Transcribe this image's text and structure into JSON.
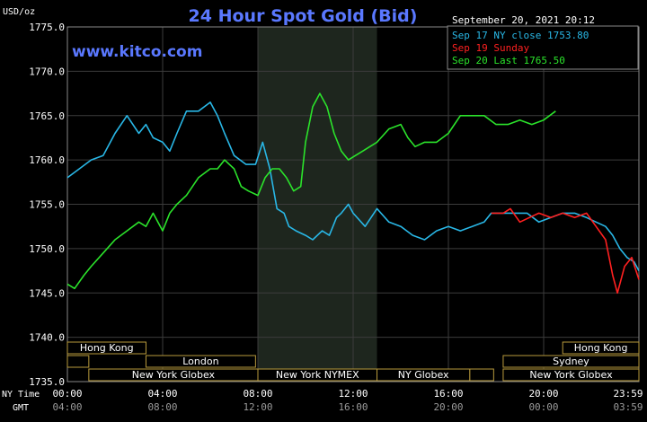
{
  "chart_data": {
    "type": "line",
    "title": "24 Hour Spot Gold (Bid)",
    "date_stamp": "September 20, 2021 20:12",
    "watermark": "www.kitco.com",
    "ylabel": "USD/oz",
    "ylim": [
      1735,
      1775
    ],
    "y_ticks": [
      "1775.0",
      "1770.0",
      "1765.0",
      "1760.0",
      "1755.0",
      "1750.0",
      "1745.0",
      "1740.0",
      "1735.0"
    ],
    "x_row1_label": "NY Time",
    "x_row2_label": "GMT",
    "x_ticks_ny": [
      "00:00",
      "04:00",
      "08:00",
      "12:00",
      "16:00",
      "20:00",
      "23:59"
    ],
    "x_ticks_gmt": [
      "04:00",
      "08:00",
      "12:00",
      "16:00",
      "20:00",
      "00:00",
      "03:59"
    ],
    "x_hours": [
      0,
      4,
      8,
      12,
      16,
      20,
      24
    ],
    "nymex_shade_hours": [
      8,
      13
    ],
    "grid": true,
    "legend_position": "top-right",
    "colors": {
      "background": "#000000",
      "grid": "#3c3c3c",
      "text": "#ffffff",
      "title": "#5a78ff",
      "shade": "#1e261e",
      "session": "#b89a3c"
    },
    "series": [
      {
        "name": "Sep 17 NY close 1753.80",
        "color": "#29b7e6",
        "x": [
          0,
          0.5,
          1,
          1.5,
          2,
          2.5,
          3,
          3.3,
          3.6,
          4,
          4.3,
          4.6,
          5,
          5.5,
          6,
          6.3,
          6.6,
          7,
          7.5,
          7.9,
          8.2,
          8.5,
          8.8,
          9.1,
          9.3,
          9.6,
          10,
          10.3,
          10.7,
          11,
          11.3,
          11.5,
          11.8,
          12,
          12.5,
          13,
          13.5,
          14,
          14.5,
          15,
          15.5,
          16,
          16.5,
          17,
          17.5,
          17.8,
          18.3,
          18.8,
          19.3,
          19.8,
          20.3,
          20.8,
          21.3,
          21.8,
          22.2,
          22.6,
          22.9,
          23.2,
          23.5,
          23.8,
          24
        ],
        "y": [
          1758,
          1759,
          1760,
          1760.5,
          1763,
          1765,
          1763,
          1764,
          1762.5,
          1762,
          1761,
          1763,
          1765.5,
          1765.5,
          1766.5,
          1765,
          1763,
          1760.5,
          1759.5,
          1759.5,
          1762,
          1759,
          1754.5,
          1754,
          1752.5,
          1752,
          1751.5,
          1751,
          1752,
          1751.5,
          1753.5,
          1754,
          1755,
          1754,
          1752.5,
          1754.5,
          1753,
          1752.5,
          1751.5,
          1751,
          1752,
          1752.5,
          1752,
          1752.5,
          1753,
          1754,
          1754,
          1754,
          1754,
          1753,
          1753.5,
          1754,
          1754,
          1753.5,
          1753,
          1752.5,
          1751.5,
          1750,
          1749,
          1748.5,
          1747.5
        ]
      },
      {
        "name": "Sep 19 Sunday",
        "color": "#ff2020",
        "x": [
          17.8,
          18.3,
          18.6,
          19,
          19.4,
          19.8,
          20.3,
          20.8,
          21.3,
          21.8,
          22.2,
          22.6,
          22.9,
          23.1,
          23.4,
          23.7,
          24
        ],
        "y": [
          1754,
          1754,
          1754.5,
          1753,
          1753.5,
          1754,
          1753.5,
          1754,
          1753.5,
          1754,
          1752.5,
          1751,
          1747,
          1745,
          1748,
          1749,
          1746.5
        ]
      },
      {
        "name": "Sep 20 Last 1765.50",
        "color": "#2be32b",
        "x": [
          0,
          0.3,
          0.7,
          1,
          1.5,
          2,
          2.5,
          3,
          3.3,
          3.6,
          4,
          4.3,
          4.6,
          5,
          5.5,
          6,
          6.3,
          6.6,
          7,
          7.3,
          7.6,
          8,
          8.3,
          8.6,
          8.9,
          9.2,
          9.5,
          9.8,
          10,
          10.3,
          10.6,
          10.9,
          11.2,
          11.5,
          11.8,
          12.1,
          12.4,
          12.7,
          13,
          13.5,
          14,
          14.3,
          14.6,
          15,
          15.5,
          16,
          16.5,
          17,
          17.5,
          18,
          18.5,
          19,
          19.5,
          20,
          20.5
        ],
        "y": [
          1746,
          1745.5,
          1747,
          1748,
          1749.5,
          1751,
          1752,
          1753,
          1752.5,
          1754,
          1752,
          1754,
          1755,
          1756,
          1758,
          1759,
          1759,
          1760,
          1759,
          1757,
          1756.5,
          1756,
          1758,
          1759,
          1759,
          1758,
          1756.5,
          1757,
          1762,
          1766,
          1767.5,
          1766,
          1763,
          1761,
          1760,
          1760.5,
          1761,
          1761.5,
          1762,
          1763.5,
          1764,
          1762.5,
          1761.5,
          1762,
          1762,
          1763,
          1765,
          1765,
          1765,
          1764,
          1764,
          1764.5,
          1764,
          1764.5,
          1765.5
        ]
      }
    ],
    "sessions": [
      {
        "label": "Hong Kong",
        "start": 0,
        "end": 3.3,
        "row": 0
      },
      {
        "label": "",
        "start": 0,
        "end": 0.9,
        "row": 1
      },
      {
        "label": "London",
        "start": 3.3,
        "end": 7.9,
        "row": 1
      },
      {
        "label": "New York Globex",
        "start": 0.9,
        "end": 8.0,
        "row": 2
      },
      {
        "label": "New York NYMEX",
        "start": 8.0,
        "end": 13.0,
        "row": 2
      },
      {
        "label": "NY Globex",
        "start": 13.0,
        "end": 16.9,
        "row": 2
      },
      {
        "label": "",
        "start": 16.9,
        "end": 17.9,
        "row": 2
      },
      {
        "label": "Hong Kong",
        "start": 20.8,
        "end": 24,
        "row": 0
      },
      {
        "label": "Sydney",
        "start": 18.3,
        "end": 24,
        "row": 1
      },
      {
        "label": "New York Globex",
        "start": 18.3,
        "end": 24,
        "row": 2
      }
    ]
  }
}
